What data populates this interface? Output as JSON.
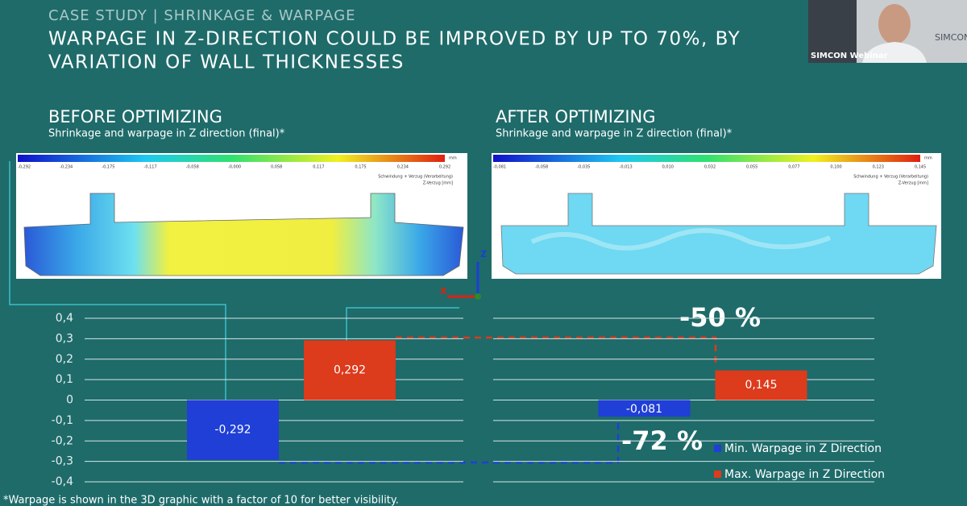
{
  "header": {
    "kicker": "CASE STUDY | SHRINKAGE & WARPAGE",
    "title_lines": [
      "WARPAGE IN Z-DIRECTION COULD BE IMPROVED BY UP TO 70%, BY",
      "VARIATION OF WALL THICKNESSES"
    ]
  },
  "webcam": {
    "caption": "SIMCON Webinar",
    "logo": "SIMCON"
  },
  "panels": [
    {
      "subtitle": "Shrinkage and warpage in Z direction (final)*",
      "unit": "mm",
      "legend_lines": [
        "Schwindung + Verzug (Verarbeitung)",
        "Z-Verzug [mm]"
      ],
      "scale_labels": [
        "-0,292",
        "-0,234",
        "-0,175",
        "-0,117",
        "-0,058",
        "-0,000",
        "0,058",
        "0,117",
        "0,175",
        "0,234",
        "0,292"
      ]
    },
    {
      "subtitle": "Shrinkage and warpage in Z direction (final)*",
      "unit": "mm",
      "legend_lines": [
        "Schwindung + Verzug (Verarbeitung)",
        "Z-Verzug [mm]"
      ],
      "scale_labels": [
        "-0,081",
        "-0,058",
        "-0,035",
        "-0,013",
        "0,010",
        "0,032",
        "0,055",
        "0,077",
        "0,100",
        "0,123",
        "0,145"
      ]
    }
  ],
  "axis_triad": {
    "z": "Z",
    "x": "X"
  },
  "chart_data": {
    "type": "bar",
    "categories": [
      "BEFORE OPTIMIZING",
      "AFTER OPTIMIZING"
    ],
    "series": [
      {
        "name": "Min. Warpage in Z Direction",
        "color": "#1f3fd6",
        "values": [
          -0.292,
          -0.081
        ],
        "value_labels": [
          "-0,292",
          "-0,081"
        ]
      },
      {
        "name": "Max. Warpage in Z Direction",
        "color": "#dc3b1c",
        "values": [
          0.292,
          0.145
        ],
        "value_labels": [
          "0,292",
          "0,145"
        ]
      }
    ],
    "ylim": [
      -0.4,
      0.4
    ],
    "yticks": [
      {
        "value": 0.4,
        "label": "0,4"
      },
      {
        "value": 0.3,
        "label": "0,3"
      },
      {
        "value": 0.2,
        "label": "0,2"
      },
      {
        "value": 0.1,
        "label": "0,1"
      },
      0,
      {
        "value": -0.1,
        "label": "-0,1"
      },
      {
        "value": -0.2,
        "label": "-0,2"
      },
      {
        "value": -0.3,
        "label": "-0,3"
      },
      {
        "value": -0.4,
        "label": "-0,4"
      }
    ],
    "grid": true,
    "legend": "lower right",
    "annotations": [
      "-50 %",
      "-72 %"
    ]
  },
  "footnote": "*Warpage is shown in the 3D graphic with a factor of 10 for better visibility."
}
